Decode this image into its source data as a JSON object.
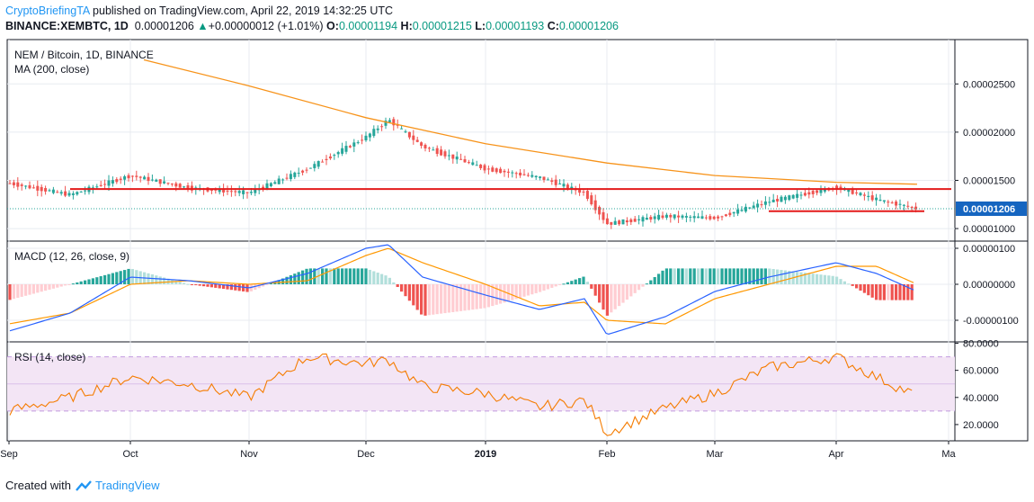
{
  "header": {
    "author": "CryptoBriefingTA",
    "published": " published on TradingView.com, April 22, 2019 14:32:25 UTC",
    "symbol": "BINANCE:XEMBTC, 1D",
    "last": "0.00001206",
    "change": "+0.00000012 (+1.01%)",
    "o_label": "O:",
    "o": "0.00001194",
    "h_label": "H:",
    "h": "0.00001215",
    "l_label": "L:",
    "l": "0.00001193",
    "c_label": "C:",
    "c": "0.00001206"
  },
  "panes": {
    "price_title": "NEM / Bitcoin, 1D, BINANCE",
    "ma_title": "MA (200, close)",
    "macd_title": "MACD (12, 26, close, 9)",
    "rsi_title": "RSI (14, close)",
    "last_price_tag": "0.00001206"
  },
  "footer": {
    "created_with": "Created with",
    "brand": "TradingView"
  },
  "colors": {
    "up": "#26a69a",
    "down": "#ef5350",
    "ma": "#f7931a",
    "support": "#e31b1b",
    "macd": "#2962ff",
    "signal": "#ff9800",
    "rsi": "#f57c00",
    "rsi_band": "#f3e5f5",
    "rsi_dash": "#c29be0",
    "hist_up": "#26a69a",
    "hist_up_light": "#b2dfdb",
    "hist_down": "#ef5350",
    "hist_down_light": "#ffcdd2",
    "last_tag": "#1565c0",
    "grid": "#e8ebf0"
  },
  "chart_data": [
    {
      "type": "candlestick",
      "title": "NEM / Bitcoin, 1D, BINANCE",
      "x_axis": {
        "labels": [
          "Sep",
          "Oct",
          "Nov",
          "Dec",
          "2019",
          "Feb",
          "Mar",
          "Apr",
          "Ma"
        ]
      },
      "y_axis": {
        "ticks": [
          "0.00002500",
          "0.00002000",
          "0.00001500",
          "0.00001000"
        ],
        "range": [
          8.7e-06,
          2.96e-05
        ]
      },
      "close_anchors": [
        {
          "x": "Sep",
          "y": 1.47e-05
        },
        {
          "x": "mid Sep",
          "y": 1.35e-05
        },
        {
          "x": "Oct",
          "y": 1.55e-05
        },
        {
          "x": "mid Oct",
          "y": 1.42e-05
        },
        {
          "x": "Nov",
          "y": 1.37e-05
        },
        {
          "x": "mid Nov",
          "y": 1.62e-05
        },
        {
          "x": "Dec",
          "y": 1.95e-05
        },
        {
          "x": "early Dec",
          "y": 2.13e-05
        },
        {
          "x": "mid Dec",
          "y": 1.85e-05
        },
        {
          "x": "2019",
          "y": 1.62e-05
        },
        {
          "x": "mid Jan",
          "y": 1.53e-05
        },
        {
          "x": "late Jan",
          "y": 1.37e-05
        },
        {
          "x": "Feb",
          "y": 1.05e-05
        },
        {
          "x": "mid Feb",
          "y": 1.13e-05
        },
        {
          "x": "Mar",
          "y": 1.11e-05
        },
        {
          "x": "mid Mar",
          "y": 1.28e-05
        },
        {
          "x": "Apr",
          "y": 1.43e-05
        },
        {
          "x": "mid Apr",
          "y": 1.3e-05
        },
        {
          "x": "Apr 22",
          "y": 1.206e-05
        }
      ],
      "ma200": [
        {
          "x": "early Oct",
          "y": 2.75e-05
        },
        {
          "x": "Nov",
          "y": 2.48e-05
        },
        {
          "x": "Dec",
          "y": 2.15e-05
        },
        {
          "x": "2019",
          "y": 1.88e-05
        },
        {
          "x": "Feb",
          "y": 1.68e-05
        },
        {
          "x": "Mar",
          "y": 1.55e-05
        },
        {
          "x": "Apr",
          "y": 1.48e-05
        },
        {
          "x": "Apr 22",
          "y": 1.46e-05
        }
      ],
      "support_lines": [
        {
          "from": "mid Sep",
          "to": "Apr 22",
          "y": 1.41e-05
        },
        {
          "from": "mid Mar",
          "to": "Apr 22",
          "y": 1.18e-05
        }
      ]
    },
    {
      "type": "macd",
      "title": "MACD (12, 26, close, 9)",
      "y_axis": {
        "ticks": [
          "0.00000100",
          "0.00000000",
          "-0.00000100"
        ],
        "range": [
          -1.6e-06,
          1.2e-06
        ]
      },
      "macd": [
        {
          "x": "Sep",
          "y": -1.3e-06
        },
        {
          "x": "mid Sep",
          "y": -8e-07
        },
        {
          "x": "Oct",
          "y": 2e-07
        },
        {
          "x": "mid Oct",
          "y": 1e-07
        },
        {
          "x": "Nov",
          "y": -1e-07
        },
        {
          "x": "mid Nov",
          "y": 3e-07
        },
        {
          "x": "Dec",
          "y": 1e-06
        },
        {
          "x": "early Dec",
          "y": 1.1e-06
        },
        {
          "x": "mid Dec",
          "y": 2e-07
        },
        {
          "x": "2019",
          "y": -3e-07
        },
        {
          "x": "mid Jan",
          "y": -7e-07
        },
        {
          "x": "late Jan",
          "y": -4e-07
        },
        {
          "x": "Feb",
          "y": -1.4e-06
        },
        {
          "x": "mid Feb",
          "y": -9e-07
        },
        {
          "x": "Mar",
          "y": -2e-07
        },
        {
          "x": "mid Mar",
          "y": 2e-07
        },
        {
          "x": "Apr",
          "y": 6e-07
        },
        {
          "x": "mid Apr",
          "y": 3e-07
        },
        {
          "x": "Apr 22",
          "y": -2e-07
        }
      ],
      "signal": [
        {
          "x": "Sep",
          "y": -1.1e-06
        },
        {
          "x": "mid Sep",
          "y": -8e-07
        },
        {
          "x": "Oct",
          "y": 0.0
        },
        {
          "x": "mid Oct",
          "y": 1e-07
        },
        {
          "x": "Nov",
          "y": 0.0
        },
        {
          "x": "mid Nov",
          "y": 1e-07
        },
        {
          "x": "Dec",
          "y": 8e-07
        },
        {
          "x": "early Dec",
          "y": 1e-06
        },
        {
          "x": "mid Dec",
          "y": 6e-07
        },
        {
          "x": "2019",
          "y": 0.0
        },
        {
          "x": "mid Jan",
          "y": -6e-07
        },
        {
          "x": "late Jan",
          "y": -5e-07
        },
        {
          "x": "Feb",
          "y": -1e-06
        },
        {
          "x": "mid Feb",
          "y": -1.1e-06
        },
        {
          "x": "Mar",
          "y": -4e-07
        },
        {
          "x": "mid Mar",
          "y": 0.0
        },
        {
          "x": "Apr",
          "y": 5e-07
        },
        {
          "x": "mid Apr",
          "y": 5e-07
        },
        {
          "x": "Apr 22",
          "y": -0.0
        }
      ]
    },
    {
      "type": "rsi",
      "title": "RSI (14, close)",
      "y_axis": {
        "ticks": [
          "80.0000",
          "60.0000",
          "40.0000",
          "20.0000"
        ],
        "range": [
          8,
          81
        ]
      },
      "band": [
        30,
        70
      ],
      "rsi": [
        {
          "x": "Sep",
          "y": 30
        },
        {
          "x": "mid Sep",
          "y": 40
        },
        {
          "x": "Oct",
          "y": 55
        },
        {
          "x": "mid Oct",
          "y": 50
        },
        {
          "x": "Nov",
          "y": 40
        },
        {
          "x": "mid Nov",
          "y": 70
        },
        {
          "x": "Dec",
          "y": 65
        },
        {
          "x": "early Dec",
          "y": 68
        },
        {
          "x": "mid Dec",
          "y": 48
        },
        {
          "x": "2019",
          "y": 43
        },
        {
          "x": "mid Jan",
          "y": 33
        },
        {
          "x": "late Jan",
          "y": 38
        },
        {
          "x": "Feb",
          "y": 14
        },
        {
          "x": "mid Feb",
          "y": 32
        },
        {
          "x": "Mar",
          "y": 43
        },
        {
          "x": "mid Mar",
          "y": 62
        },
        {
          "x": "Apr",
          "y": 70
        },
        {
          "x": "mid Apr",
          "y": 55
        },
        {
          "x": "Apr 22",
          "y": 41
        }
      ]
    }
  ]
}
